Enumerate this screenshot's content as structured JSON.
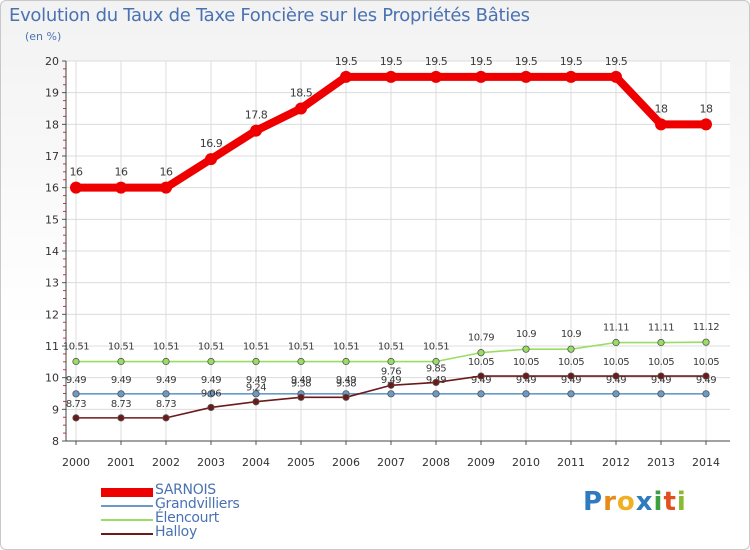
{
  "title": "Evolution du Taux de Taxe Foncière sur les Propriétés Bâties",
  "unit": "(en %)",
  "logo": {
    "letters": [
      "P",
      "r",
      "o",
      "x",
      "i",
      "t",
      "i"
    ],
    "colors": [
      "#2f7bbf",
      "#e88a1a",
      "#f0b020",
      "#2f7bbf",
      "#3aa040",
      "#e05020",
      "#88bb30"
    ]
  },
  "chart_data": {
    "type": "line",
    "title": "Evolution du Taux de Taxe Foncière sur les Propriétés Bâties",
    "ylabel": "(en %)",
    "xlabel": "",
    "x": [
      "2000",
      "2001",
      "2002",
      "2003",
      "2004",
      "2005",
      "2006",
      "2007",
      "2008",
      "2009",
      "2010",
      "2011",
      "2012",
      "2013",
      "2014"
    ],
    "y_ticks": [
      "8",
      "9",
      "10",
      "11",
      "12",
      "13",
      "14",
      "15",
      "16",
      "17",
      "18",
      "19",
      "20"
    ],
    "ylim": [
      8,
      20
    ],
    "series": [
      {
        "name": "SARNOIS",
        "color": "#ee0000",
        "values": [
          16,
          16,
          16,
          16.9,
          17.8,
          18.5,
          19.5,
          19.5,
          19.5,
          19.5,
          19.5,
          19.5,
          19.5,
          18,
          18
        ],
        "labels": [
          "16",
          "16",
          "16",
          "16.9",
          "17.8",
          "18.5",
          "19.5",
          "19.5",
          "19.5",
          "19.5",
          "19.5",
          "19.5",
          "19.5",
          "18",
          "18"
        ]
      },
      {
        "name": "Grandvilliers",
        "color": "#6a9bc8",
        "values": [
          9.49,
          9.49,
          9.49,
          9.49,
          9.49,
          9.49,
          9.49,
          9.49,
          9.49,
          9.49,
          9.49,
          9.49,
          9.49,
          9.49,
          9.49
        ],
        "labels": [
          "9.49",
          "9.49",
          "9.49",
          "9.49",
          "9.49",
          "9.49",
          "9.49",
          "9.49",
          "9.49",
          "9.49",
          "9.49",
          "9.49",
          "9.49",
          "9.49",
          "9.49"
        ]
      },
      {
        "name": "Élencourt",
        "color": "#99dd66",
        "values": [
          10.51,
          10.51,
          10.51,
          10.51,
          10.51,
          10.51,
          10.51,
          10.51,
          10.51,
          10.79,
          10.9,
          10.9,
          11.11,
          11.11,
          11.12
        ],
        "labels": [
          "10.51",
          "10.51",
          "10.51",
          "10.51",
          "10.51",
          "10.51",
          "10.51",
          "10.51",
          "10.51",
          "10.79",
          "10.9",
          "10.9",
          "11.11",
          "11.11",
          "11.12"
        ]
      },
      {
        "name": "Halloy",
        "color": "#6b1a1a",
        "values": [
          8.73,
          8.73,
          8.73,
          9.06,
          9.24,
          9.38,
          9.38,
          9.76,
          9.85,
          10.05,
          10.05,
          10.05,
          10.05,
          10.05,
          10.05
        ],
        "labels": [
          "8.73",
          "8.73",
          "8.73",
          "9.06",
          "9.24",
          "9.38",
          "9.38",
          "9.76",
          "9.85",
          "10.05",
          "10.05",
          "10.05",
          "10.05",
          "10.05",
          "10.05"
        ]
      }
    ]
  }
}
